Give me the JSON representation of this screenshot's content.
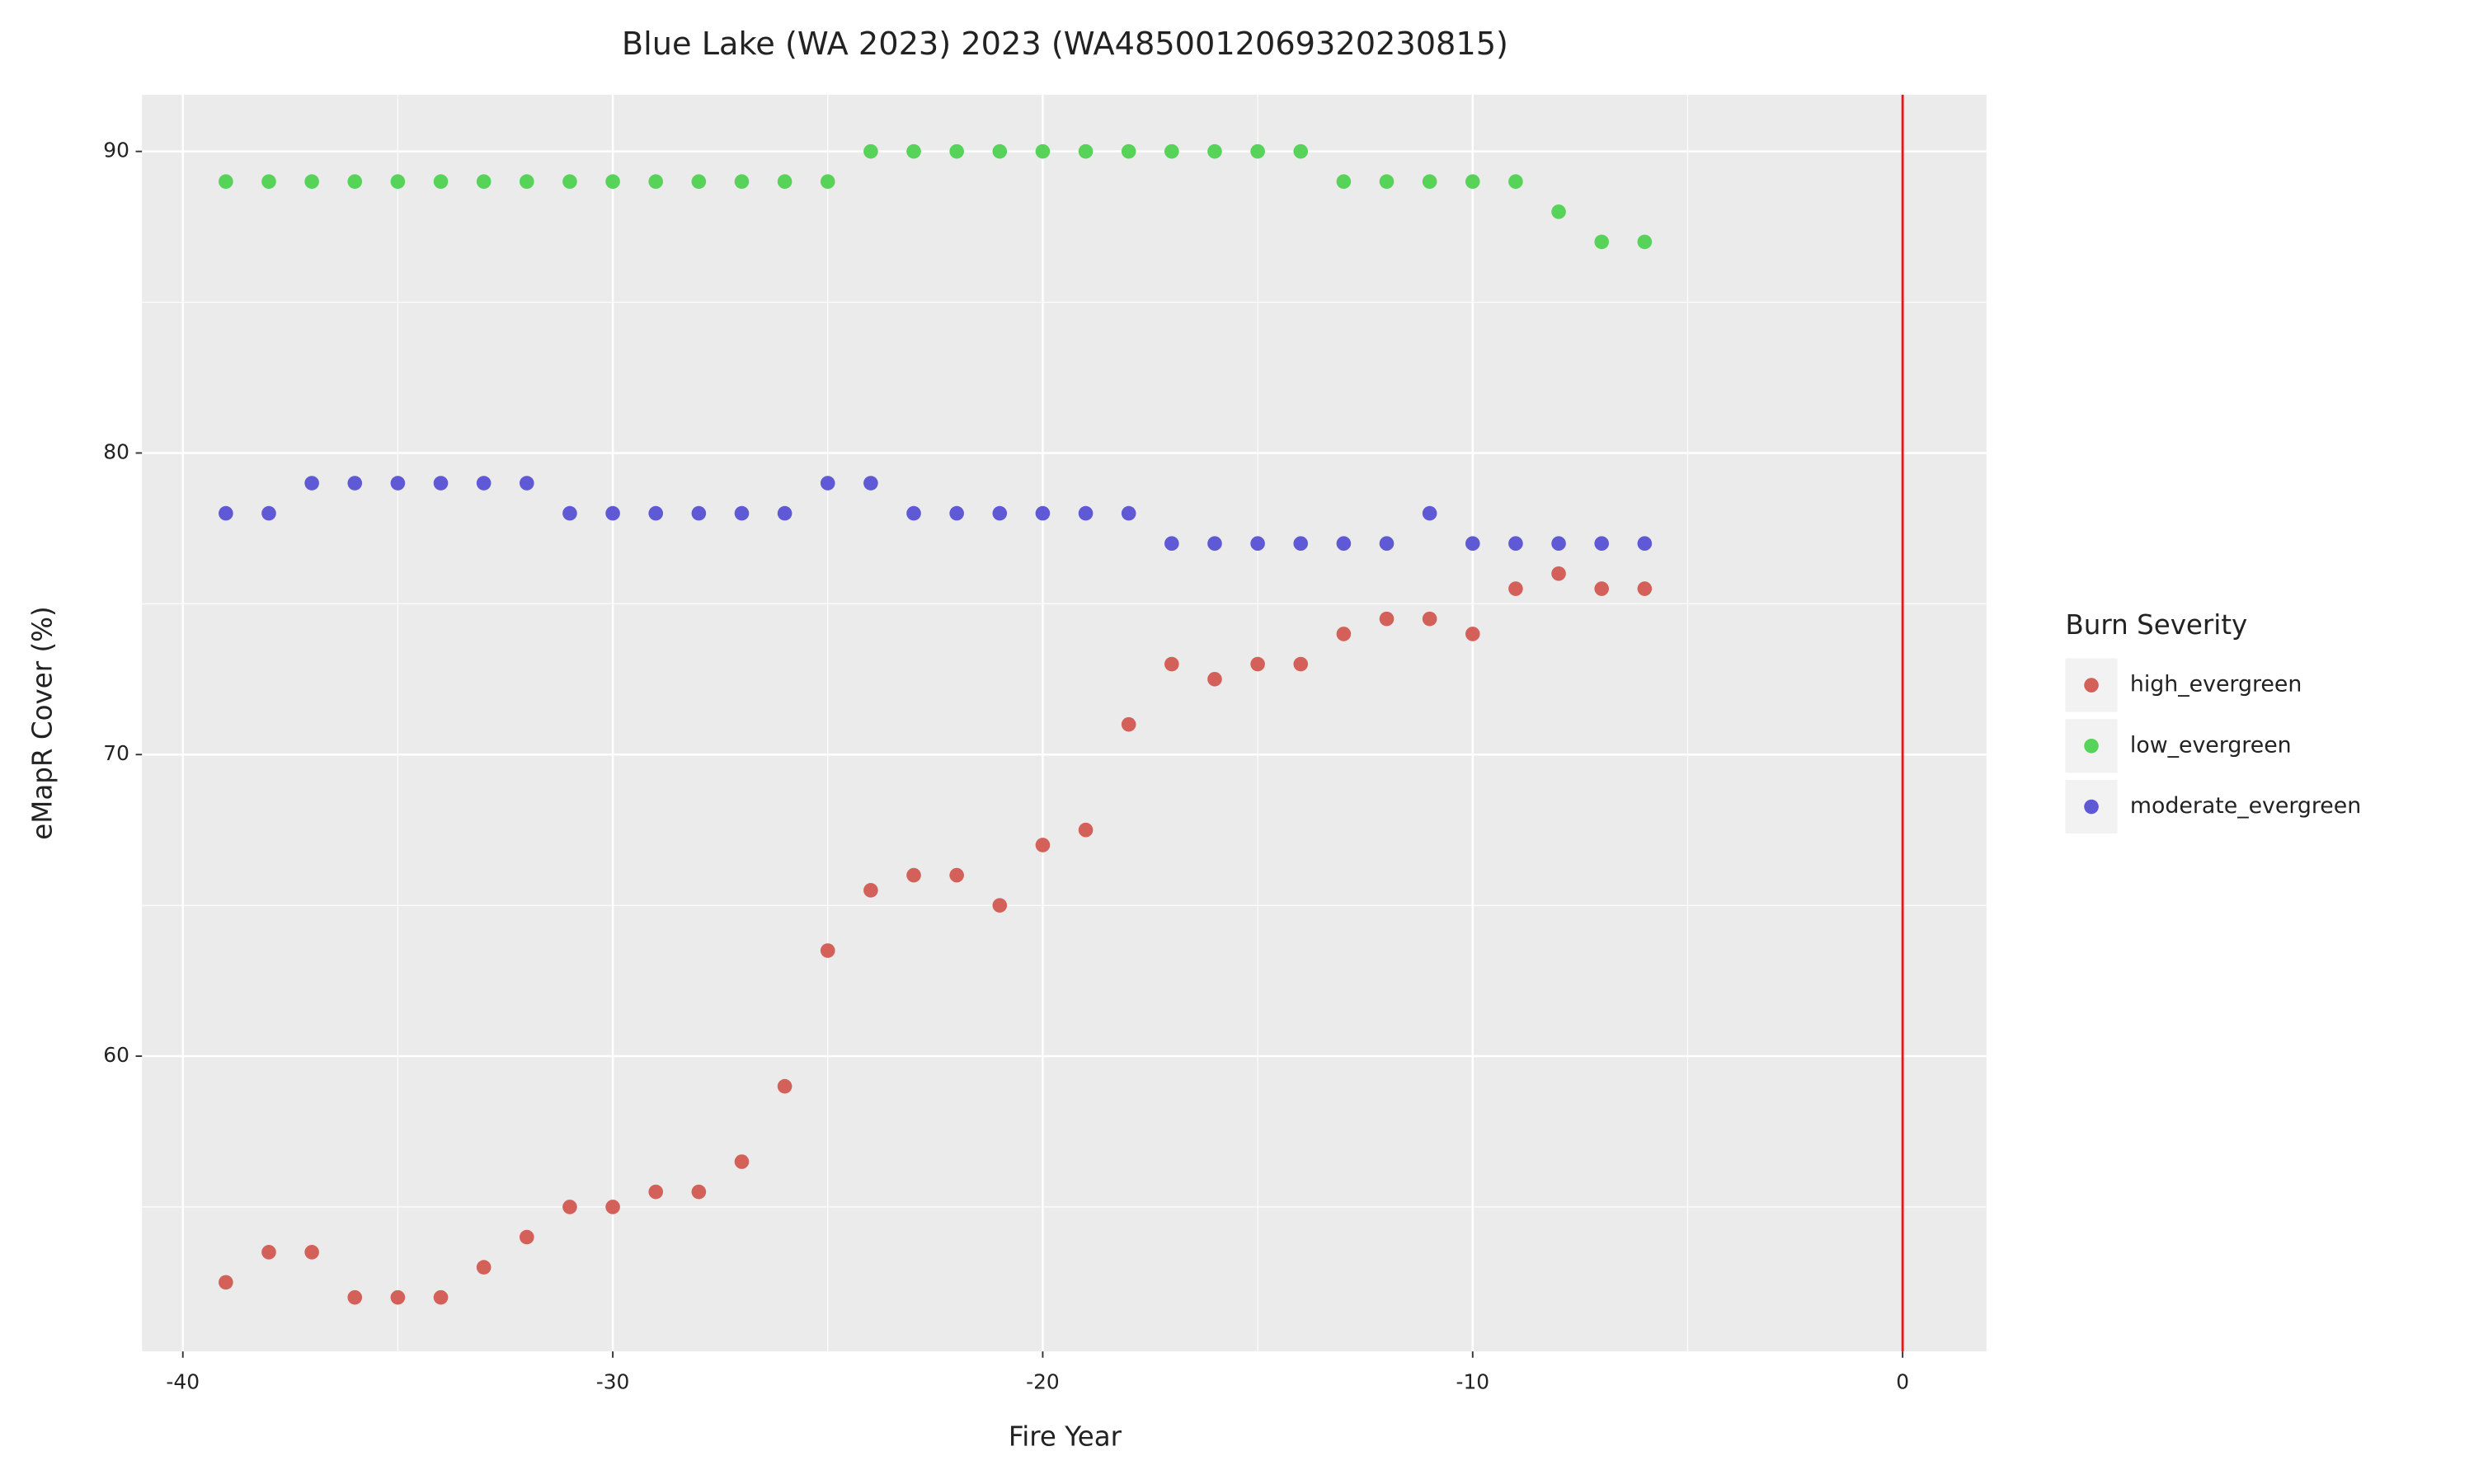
{
  "chart_data": {
    "type": "scatter",
    "title": "Blue Lake (WA 2023) 2023 (WA4850012069320230815)",
    "x_label": "Fire Year",
    "y_label": "eMapR Cover (%)",
    "legend_title": "Burn Severity",
    "legend_position": "right",
    "xlim": [
      -40.95,
      1.95
    ],
    "ylim": [
      50.21,
      91.88
    ],
    "xticks": [
      -40,
      -30,
      -20,
      -10,
      0
    ],
    "yticks": [
      60,
      70,
      80,
      90
    ],
    "grid": true,
    "vline": {
      "x": 0,
      "color": "#e31a1c"
    },
    "x": [
      -39,
      -38,
      -37,
      -36,
      -35,
      -34,
      -33,
      -32,
      -31,
      -30,
      -29,
      -28,
      -27,
      -26,
      -25,
      -24,
      -23,
      -22,
      -21,
      -20,
      -19,
      -18,
      -17,
      -16,
      -15,
      -14,
      -13,
      -12,
      -11,
      -10,
      -9,
      -8,
      -7,
      -6
    ],
    "series": [
      {
        "name": "high_evergreen",
        "color": "#d4605a",
        "values": [
          52.5,
          53.5,
          53.5,
          52,
          52,
          52,
          53,
          54,
          55,
          55,
          55.5,
          55.5,
          56.5,
          59,
          63.5,
          65.5,
          66,
          66,
          65,
          67,
          67.5,
          71,
          73,
          72.5,
          73,
          73,
          74,
          74.5,
          74.5,
          74,
          75.5,
          76,
          75.5,
          75.5
        ]
      },
      {
        "name": "low_evergreen",
        "color": "#57d35a",
        "values": [
          89,
          89,
          89,
          89,
          89,
          89,
          89,
          89,
          89,
          89,
          89,
          89,
          89,
          89,
          89,
          90,
          90,
          90,
          90,
          90,
          90,
          90,
          90,
          90,
          90,
          90,
          89,
          89,
          89,
          89,
          89,
          88,
          87,
          87
        ]
      },
      {
        "name": "moderate_evergreen",
        "color": "#6059d6",
        "values": [
          78,
          78,
          79,
          79,
          79,
          79,
          79,
          79,
          78,
          78,
          78,
          78,
          78,
          78,
          79,
          79,
          78,
          78,
          78,
          78,
          78,
          78,
          77,
          77,
          77,
          77,
          77,
          77,
          78,
          77,
          77,
          77,
          77,
          77
        ]
      }
    ]
  }
}
